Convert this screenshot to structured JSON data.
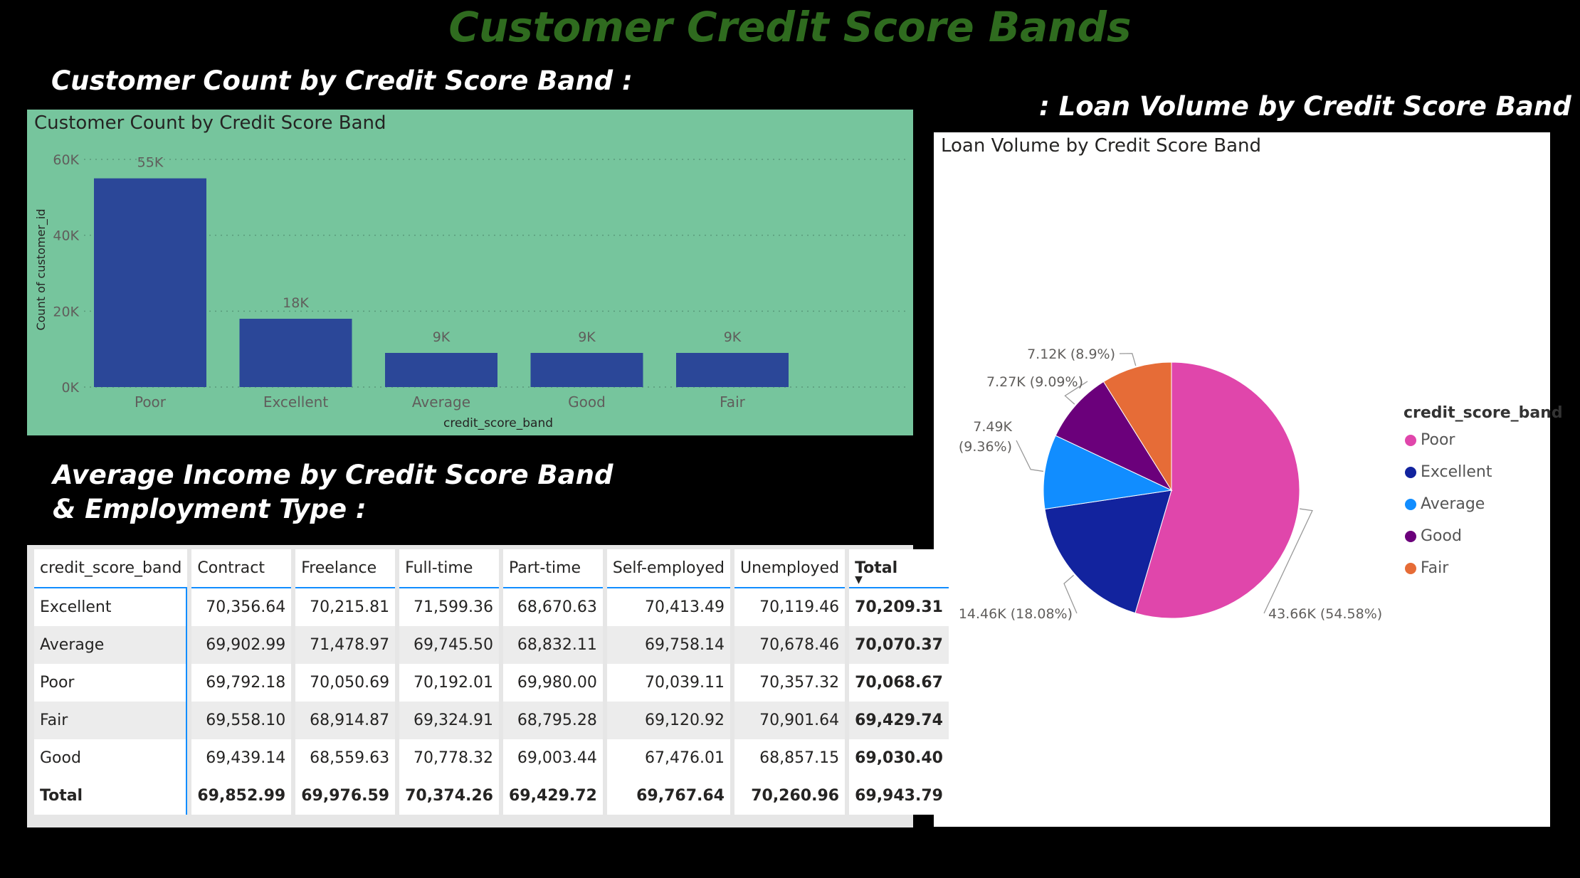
{
  "page": {
    "title": "Customer Credit Score Bands",
    "section_bar": "Customer Count by Credit Score Band :",
    "section_table_line1": "Average Income by Credit Score Band",
    "section_table_line2": "& Employment Type :",
    "section_pie": ": Loan Volume by Credit Score Band"
  },
  "colors": {
    "title": "#2f6b1f",
    "bar_panel_bg": "#76c59d",
    "bar": "#2b4798",
    "pie_poor": "#e046ab",
    "pie_excellent": "#12239e",
    "pie_average": "#118dff",
    "pie_good": "#6b007b",
    "pie_fair": "#e66c37"
  },
  "chart_data": [
    {
      "type": "bar",
      "title": "Customer Count by Credit Score Band",
      "xlabel": "credit_score_band",
      "ylabel": "Count of customer_id",
      "categories": [
        "Poor",
        "Excellent",
        "Average",
        "Good",
        "Fair"
      ],
      "values": [
        55000,
        18000,
        9000,
        9000,
        9000
      ],
      "data_labels": [
        "55K",
        "18K",
        "9K",
        "9K",
        "9K"
      ],
      "yticks": [
        0,
        20000,
        40000,
        60000
      ],
      "ytick_labels": [
        "0K",
        "20K",
        "40K",
        "60K"
      ],
      "ylim": [
        0,
        60000
      ],
      "grid": true
    },
    {
      "type": "pie",
      "title": "Loan Volume by Credit Score Band",
      "legend_title": "credit_score_band",
      "legend_position": "right",
      "slices": [
        {
          "name": "Poor",
          "value": 43660,
          "label": "43.66K (54.58%)",
          "color": "#e046ab"
        },
        {
          "name": "Excellent",
          "value": 14460,
          "label": "14.46K (18.08%)",
          "color": "#12239e"
        },
        {
          "name": "Average",
          "value": 7490,
          "label_line1": "7.49K",
          "label_line2": "(9.36%)",
          "color": "#118dff"
        },
        {
          "name": "Good",
          "value": 7270,
          "label": "7.27K (9.09%)",
          "color": "#6b007b"
        },
        {
          "name": "Fair",
          "value": 7120,
          "label": "7.12K (8.9%)",
          "color": "#e66c37"
        }
      ]
    },
    {
      "type": "table",
      "columns": [
        "credit_score_band",
        "Contract",
        "Freelance",
        "Full-time",
        "Part-time",
        "Self-employed",
        "Unemployed",
        "Total"
      ],
      "rows": [
        [
          "Excellent",
          "70,356.64",
          "70,215.81",
          "71,599.36",
          "68,670.63",
          "70,413.49",
          "70,119.46",
          "70,209.31"
        ],
        [
          "Average",
          "69,902.99",
          "71,478.97",
          "69,745.50",
          "68,832.11",
          "69,758.14",
          "70,678.46",
          "70,070.37"
        ],
        [
          "Poor",
          "69,792.18",
          "70,050.69",
          "70,192.01",
          "69,980.00",
          "70,039.11",
          "70,357.32",
          "70,068.67"
        ],
        [
          "Fair",
          "69,558.10",
          "68,914.87",
          "69,324.91",
          "68,795.28",
          "69,120.92",
          "70,901.64",
          "69,429.74"
        ],
        [
          "Good",
          "69,439.14",
          "68,559.63",
          "70,778.32",
          "69,003.44",
          "67,476.01",
          "68,857.15",
          "69,030.40"
        ]
      ],
      "total_row": [
        "Total",
        "69,852.99",
        "69,976.59",
        "70,374.26",
        "69,429.72",
        "69,767.64",
        "70,260.96",
        "69,943.79"
      ],
      "sort_indicator": "▼"
    }
  ]
}
